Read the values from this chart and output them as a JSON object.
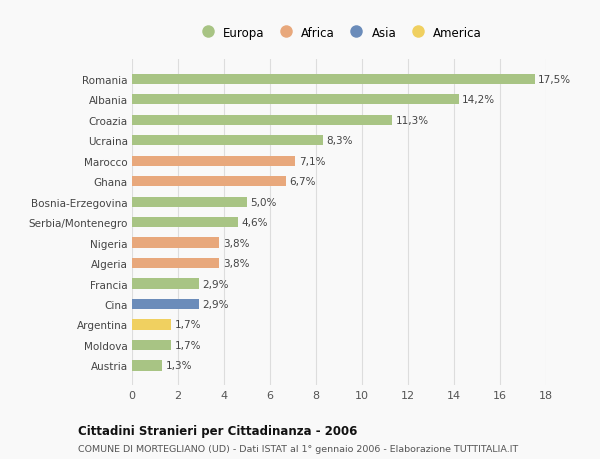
{
  "categories": [
    "Romania",
    "Albania",
    "Croazia",
    "Ucraina",
    "Marocco",
    "Ghana",
    "Bosnia-Erzegovina",
    "Serbia/Montenegro",
    "Nigeria",
    "Algeria",
    "Francia",
    "Cina",
    "Argentina",
    "Moldova",
    "Austria"
  ],
  "values": [
    17.5,
    14.2,
    11.3,
    8.3,
    7.1,
    6.7,
    5.0,
    4.6,
    3.8,
    3.8,
    2.9,
    2.9,
    1.7,
    1.7,
    1.3
  ],
  "labels": [
    "17,5%",
    "14,2%",
    "11,3%",
    "8,3%",
    "7,1%",
    "6,7%",
    "5,0%",
    "4,6%",
    "3,8%",
    "3,8%",
    "2,9%",
    "2,9%",
    "1,7%",
    "1,7%",
    "1,3%"
  ],
  "colors": [
    "#a8c484",
    "#a8c484",
    "#a8c484",
    "#a8c484",
    "#e8a87c",
    "#e8a87c",
    "#a8c484",
    "#a8c484",
    "#e8a87c",
    "#e8a87c",
    "#a8c484",
    "#6b8cba",
    "#f0d060",
    "#a8c484",
    "#a8c484"
  ],
  "legend_labels": [
    "Europa",
    "Africa",
    "Asia",
    "America"
  ],
  "legend_colors": [
    "#a8c484",
    "#e8a87c",
    "#6b8cba",
    "#f0d060"
  ],
  "title": "Cittadini Stranieri per Cittadinanza - 2006",
  "subtitle": "COMUNE DI MORTEGLIANO (UD) - Dati ISTAT al 1° gennaio 2006 - Elaborazione TUTTITALIA.IT",
  "xlim": [
    0,
    18
  ],
  "xticks": [
    0,
    2,
    4,
    6,
    8,
    10,
    12,
    14,
    16,
    18
  ],
  "bg_color": "#f9f9f9",
  "grid_color": "#dddddd",
  "bar_height": 0.5
}
